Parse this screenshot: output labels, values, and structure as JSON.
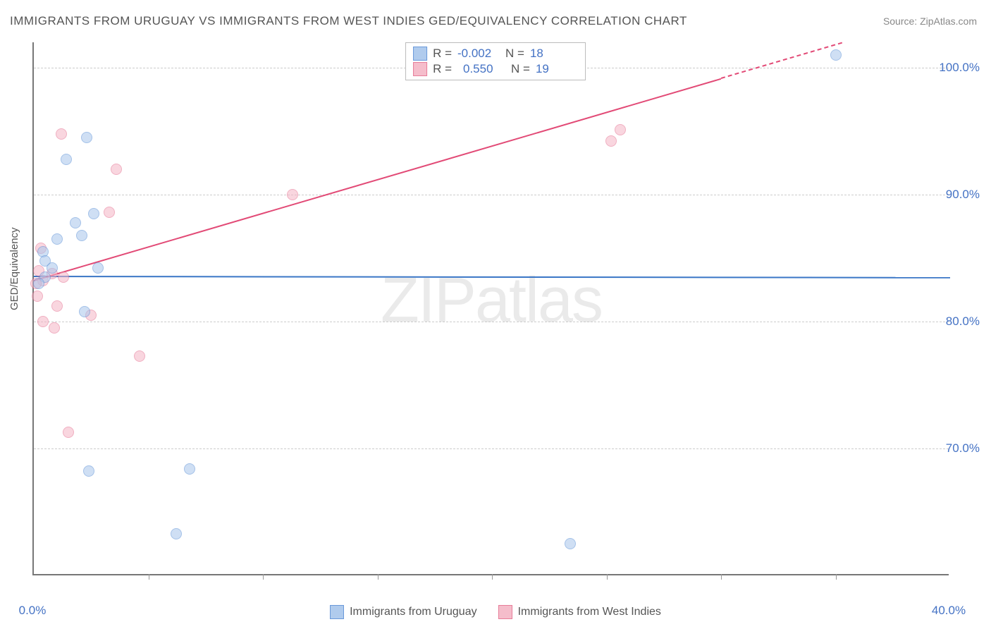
{
  "title": "IMMIGRANTS FROM URUGUAY VS IMMIGRANTS FROM WEST INDIES GED/EQUIVALENCY CORRELATION CHART",
  "source_label": "Source: ZipAtlas.com",
  "y_axis_label": "GED/Equivalency",
  "watermark": "ZIPatlas",
  "chart": {
    "type": "scatter",
    "background_color": "#ffffff",
    "grid_color": "#cccccc",
    "axis_color": "#777777",
    "tick_label_color": "#4472c4",
    "xlim": [
      0,
      40
    ],
    "ylim": [
      60,
      102
    ],
    "y_ticks": [
      70,
      80,
      90,
      100
    ],
    "y_tick_labels": [
      "70.0%",
      "80.0%",
      "90.0%",
      "100.0%"
    ],
    "x_ticks": [
      0,
      40
    ],
    "x_tick_labels": [
      "0.0%",
      "40.0%"
    ],
    "x_minor_ticks": [
      5,
      10,
      15,
      20,
      25,
      30,
      35
    ],
    "marker_size": 16,
    "marker_border_width": 1.5,
    "line_width": 2
  },
  "series": {
    "uruguay": {
      "label": "Immigrants from Uruguay",
      "fill_color": "#a8c6ec",
      "border_color": "#5a8fd6",
      "fill_opacity": 0.55,
      "r_value": "-0.002",
      "n_value": "18",
      "points": [
        {
          "x": 35.0,
          "y": 101.0
        },
        {
          "x": 2.3,
          "y": 94.5
        },
        {
          "x": 1.4,
          "y": 92.8
        },
        {
          "x": 2.6,
          "y": 88.5
        },
        {
          "x": 1.8,
          "y": 87.8
        },
        {
          "x": 2.1,
          "y": 86.8
        },
        {
          "x": 1.0,
          "y": 86.5
        },
        {
          "x": 0.4,
          "y": 85.5
        },
        {
          "x": 0.5,
          "y": 84.8
        },
        {
          "x": 0.8,
          "y": 84.2
        },
        {
          "x": 2.8,
          "y": 84.2
        },
        {
          "x": 0.5,
          "y": 83.5
        },
        {
          "x": 0.2,
          "y": 83.0
        },
        {
          "x": 2.2,
          "y": 80.8
        },
        {
          "x": 6.8,
          "y": 68.4
        },
        {
          "x": 2.4,
          "y": 68.2
        },
        {
          "x": 6.2,
          "y": 63.3
        },
        {
          "x": 23.4,
          "y": 62.5
        }
      ],
      "trend": {
        "y_at_xmin": 83.6,
        "y_at_xmax": 83.5,
        "dash": false,
        "color": "#3a76c6"
      }
    },
    "west_indies": {
      "label": "Immigrants from West Indies",
      "fill_color": "#f5b6c6",
      "border_color": "#e56f8f",
      "fill_opacity": 0.55,
      "r_value": "0.550",
      "n_value": "19",
      "points": [
        {
          "x": 25.6,
          "y": 95.1
        },
        {
          "x": 25.2,
          "y": 94.2
        },
        {
          "x": 1.2,
          "y": 94.8
        },
        {
          "x": 3.6,
          "y": 92.0
        },
        {
          "x": 11.3,
          "y": 90.0
        },
        {
          "x": 3.3,
          "y": 88.6
        },
        {
          "x": 0.3,
          "y": 85.8
        },
        {
          "x": 0.2,
          "y": 84.0
        },
        {
          "x": 0.8,
          "y": 83.8
        },
        {
          "x": 1.3,
          "y": 83.5
        },
        {
          "x": 0.4,
          "y": 83.2
        },
        {
          "x": 0.1,
          "y": 83.0
        },
        {
          "x": 0.15,
          "y": 82.0
        },
        {
          "x": 1.0,
          "y": 81.2
        },
        {
          "x": 2.5,
          "y": 80.5
        },
        {
          "x": 0.4,
          "y": 80.0
        },
        {
          "x": 0.9,
          "y": 79.5
        },
        {
          "x": 4.6,
          "y": 77.3
        },
        {
          "x": 1.5,
          "y": 71.3
        }
      ],
      "trend": {
        "y_at_xmin": 83.3,
        "y_at_xmax": 104.5,
        "dash": false,
        "color": "#e24a76"
      },
      "trend_dash_after_x": 30
    }
  },
  "legend_top": {
    "r_label": "R =",
    "n_label": "N ="
  }
}
